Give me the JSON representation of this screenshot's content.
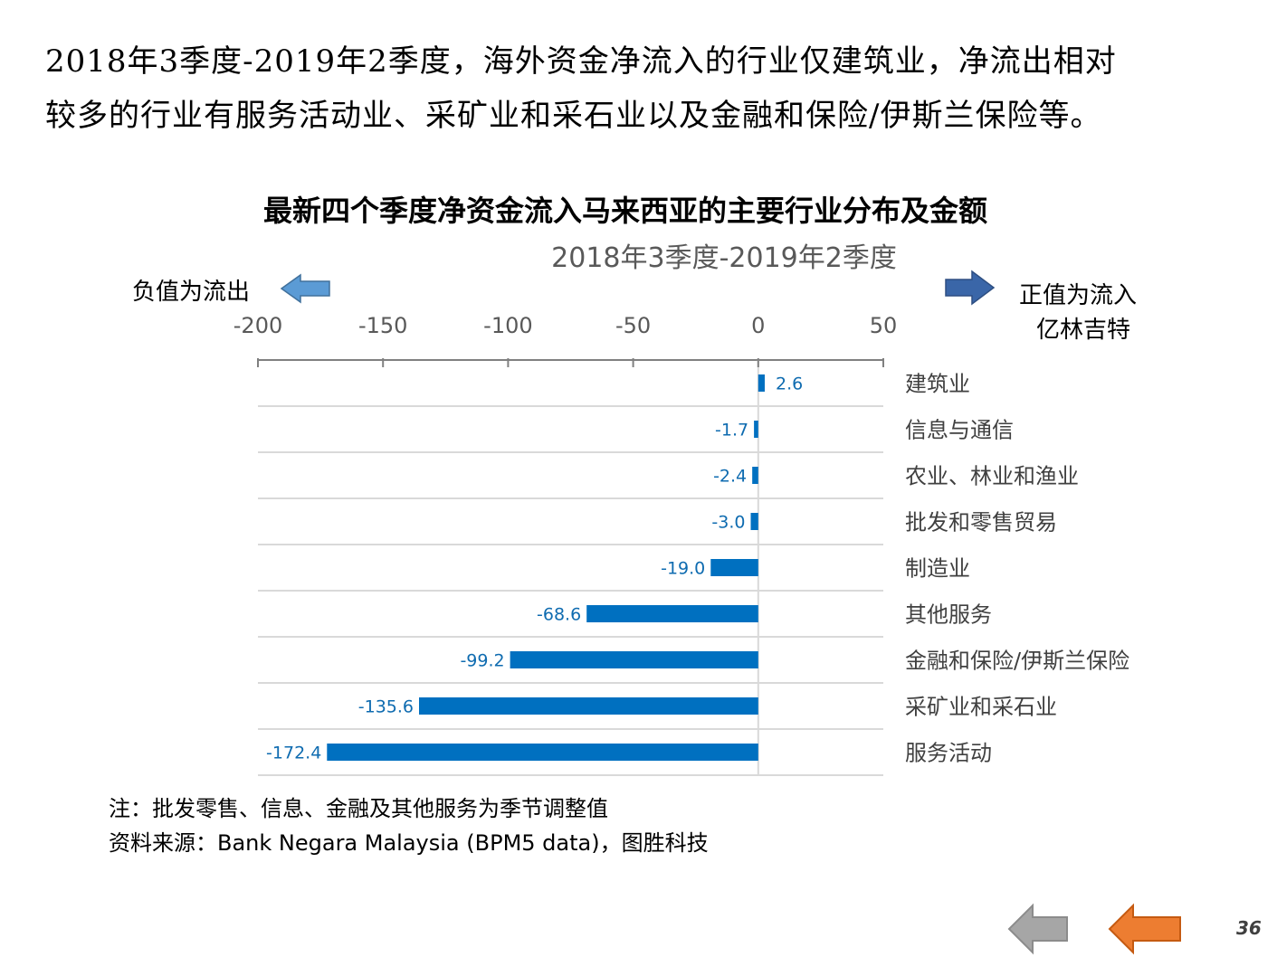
{
  "intro": {
    "line1": "2018年3季度-2019年2季度，海外资金净流入的行业仅建筑业，净流出相对",
    "line2": "较多的行业有服务活动业、采矿业和采石业以及金融和保险/伊斯兰保险等。"
  },
  "legend": {
    "negative": "负值为流出",
    "positive": "正值为流入",
    "unit": "亿林吉特"
  },
  "colors": {
    "bar": "#0070C0",
    "label": "#0E6BB0",
    "left_arrow": "#5B9BD5",
    "right_arrow": "#3A66A8",
    "prev_button": "#A6A6A6",
    "next_button": "#ED7D31"
  },
  "chart_data": {
    "type": "bar",
    "orientation": "horizontal",
    "title": "最新四个季度净资金流入马来西亚的主要行业分布及金额",
    "subtitle": "2018年3季度-2019年2季度",
    "xlim": [
      -200,
      50
    ],
    "x_ticks": [
      -200,
      -150,
      -100,
      -50,
      0,
      50
    ],
    "x_axis_position": "top",
    "category_labels_position": "right",
    "grid": true,
    "categories": [
      "建筑业",
      "信息与通信",
      "农业、林业和渔业",
      "批发和零售贸易",
      "制造业",
      "其他服务",
      "金融和保险/伊斯兰保险",
      "采矿业和采石业",
      "服务活动"
    ],
    "values": [
      2.6,
      -1.7,
      -2.4,
      -3.0,
      -19.0,
      -68.6,
      -99.2,
      -135.6,
      -172.4
    ],
    "data_labels": [
      "2.6",
      "-1.7",
      "-2.4",
      "-3.0",
      "-19.0",
      "-68.6",
      "-99.2",
      "-135.6",
      "-172.4"
    ]
  },
  "notes": {
    "line1": "注：批发零售、信息、金融及其他服务为季节调整值",
    "line2": "资料来源：Bank Negara Malaysia  (BPM5 data)，图胜科技"
  },
  "navigation": {
    "prev_icon": "left-arrow-icon",
    "next_icon": "left-arrow-icon"
  },
  "page_number": "36"
}
